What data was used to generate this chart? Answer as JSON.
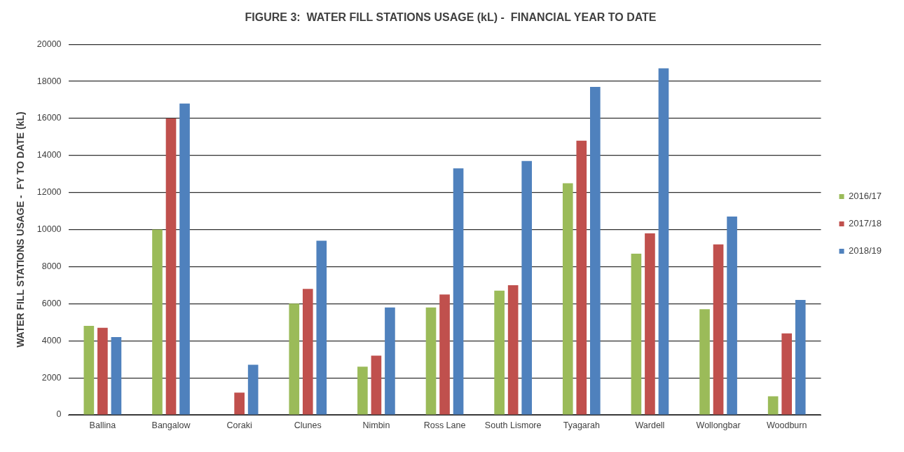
{
  "chart_data": {
    "type": "bar",
    "title": "FIGURE 3:  WATER FILL STATIONS USAGE (kL) -  FINANCIAL YEAR TO DATE",
    "ylabel": "WATER FILL STATIONS USAGE -  FY TO DATE (kL)",
    "categories": [
      "Ballina",
      "Bangalow",
      "Coraki",
      "Clunes",
      "Nimbin",
      "Ross Lane",
      "South Lismore",
      "Tyagarah",
      "Wardell",
      "Wollongbar",
      "Woodburn"
    ],
    "series": [
      {
        "name": "2016/17",
        "color": "#9bbb59",
        "values": [
          4800,
          10000,
          null,
          6000,
          2600,
          5800,
          6700,
          12500,
          8700,
          5700,
          1000
        ]
      },
      {
        "name": "2017/18",
        "color": "#c0504d",
        "values": [
          4700,
          16000,
          1200,
          6800,
          3200,
          6500,
          7000,
          14800,
          9800,
          9200,
          4400
        ]
      },
      {
        "name": "2018/19",
        "color": "#4f81bd",
        "values": [
          4200,
          16800,
          2700,
          9400,
          5800,
          13300,
          13700,
          17700,
          18700,
          10700,
          6200
        ]
      }
    ],
    "ylim": [
      0,
      20000
    ],
    "yticks": [
      0,
      2000,
      4000,
      6000,
      8000,
      10000,
      12000,
      14000,
      16000,
      18000,
      20000
    ],
    "grid": "y",
    "legend": "right"
  }
}
